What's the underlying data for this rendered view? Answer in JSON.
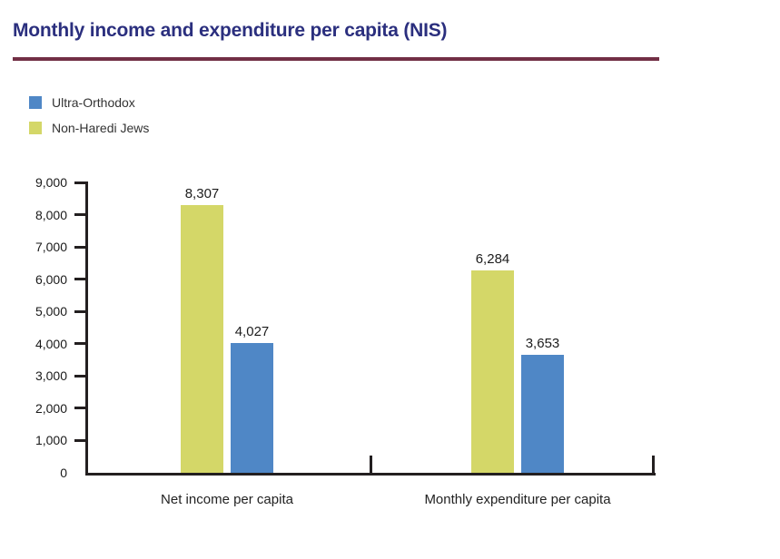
{
  "title": "Monthly income and expenditure per capita (NIS)",
  "legend": {
    "items": [
      {
        "label": "Ultra-Orthodox",
        "color": "#4f87c6"
      },
      {
        "label": "Non-Haredi Jews",
        "color": "#d4d768"
      }
    ]
  },
  "chart_data": {
    "type": "bar",
    "title": "Monthly income and expenditure per capita (NIS)",
    "categories": [
      "Net income per capita",
      "Monthly expenditure per capita"
    ],
    "series": [
      {
        "name": "Non-Haredi Jews",
        "color": "#d4d768",
        "values": [
          8307,
          6284
        ],
        "value_labels": [
          "8,307",
          "6,284"
        ]
      },
      {
        "name": "Ultra-Orthodox",
        "color": "#4f87c6",
        "values": [
          4027,
          3653
        ],
        "value_labels": [
          "4,027",
          "3,653"
        ]
      }
    ],
    "xlabel": "",
    "ylabel": "",
    "ylim": [
      0,
      9000
    ],
    "ytick_step": 1000,
    "ytick_labels": [
      "0",
      "1,000",
      "2,000",
      "3,000",
      "4,000",
      "5,000",
      "6,000",
      "7,000",
      "8,000",
      "9,000"
    ],
    "grid": false,
    "legend_position": "top-left"
  },
  "colors": {
    "title_text": "#2b2f7e",
    "title_rule": "#722f45",
    "axis": "#231f20",
    "bar_non_haredi": "#d4d768",
    "bar_ultra_orthodox": "#4f87c6"
  }
}
